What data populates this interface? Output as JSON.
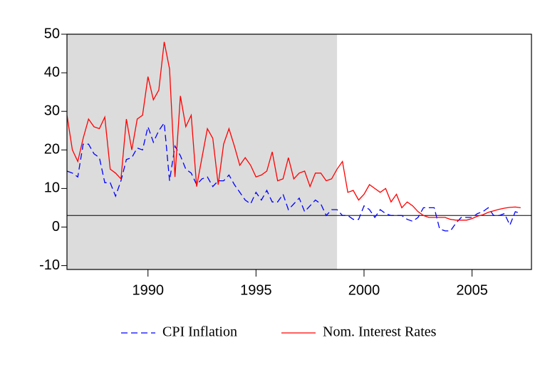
{
  "chart_data": {
    "type": "line",
    "x": [
      1986.25,
      1986.5,
      1986.75,
      1987,
      1987.25,
      1987.5,
      1987.75,
      1988,
      1988.25,
      1988.5,
      1988.75,
      1989,
      1989.25,
      1989.5,
      1989.75,
      1990,
      1990.25,
      1990.5,
      1990.75,
      1991,
      1991.25,
      1991.5,
      1991.75,
      1992,
      1992.25,
      1992.5,
      1992.75,
      1993,
      1993.25,
      1993.5,
      1993.75,
      1994,
      1994.25,
      1994.5,
      1994.75,
      1995,
      1995.25,
      1995.5,
      1995.75,
      1996,
      1996.25,
      1996.5,
      1996.75,
      1997,
      1997.25,
      1997.5,
      1997.75,
      1998,
      1998.25,
      1998.5,
      1998.75,
      1999,
      1999.25,
      1999.5,
      1999.75,
      2000,
      2000.25,
      2000.5,
      2000.75,
      2001,
      2001.25,
      2001.5,
      2001.75,
      2002,
      2002.25,
      2002.5,
      2002.75,
      2003,
      2003.25,
      2003.5,
      2003.75,
      2004,
      2004.25,
      2004.5,
      2004.75,
      2005,
      2005.25,
      2005.5,
      2005.75,
      2006,
      2006.25,
      2006.5,
      2006.75,
      2007,
      2007.25
    ],
    "series": [
      {
        "name": "CPI Inflation",
        "color": "#0000ff",
        "dashed": true,
        "values": [
          14.5,
          14,
          13,
          21.5,
          21.5,
          19,
          18,
          11.5,
          11.5,
          8,
          12,
          17.5,
          18,
          20.5,
          20,
          26,
          22,
          25,
          27,
          12,
          21,
          18.5,
          15,
          14,
          11,
          12.5,
          13,
          10.5,
          12,
          12,
          13.5,
          11,
          9,
          7,
          6,
          9,
          7,
          9.5,
          6.5,
          6.5,
          8.5,
          4.5,
          6,
          7.5,
          4,
          5.5,
          7,
          6,
          3,
          4.5,
          4.5,
          3,
          3,
          2,
          2,
          5.5,
          4.5,
          2.5,
          4.5,
          3.5,
          3,
          3,
          3,
          2,
          1.5,
          2.5,
          5,
          5,
          5,
          -0.5,
          -1,
          -1,
          1,
          2.5,
          2.5,
          2.5,
          3.5,
          4,
          5,
          3,
          3,
          3.5,
          0.5,
          4,
          3.5
        ]
      },
      {
        "name": "Nom. Interest Rates",
        "color": "#ff0000",
        "dashed": false,
        "values": [
          29,
          20,
          17,
          23,
          28,
          26,
          25.5,
          28.5,
          15,
          14,
          12.5,
          28,
          20,
          28,
          29,
          39,
          33,
          35.5,
          48,
          41,
          13,
          34,
          26,
          29,
          10.5,
          18,
          25.5,
          23,
          11,
          21.5,
          25.5,
          21,
          16,
          18,
          16,
          13,
          13.5,
          14.5,
          19.5,
          12,
          12.5,
          18,
          12.5,
          14,
          14.5,
          10.5,
          14,
          14,
          12,
          12.5,
          15,
          17,
          9,
          9.5,
          7,
          8.5,
          11,
          10,
          9,
          10,
          6.5,
          8.5,
          5,
          6.5,
          5.5,
          4,
          3,
          2.5,
          2.5,
          2.5,
          2.5,
          2,
          1.8,
          1.8,
          1.8,
          2.2,
          2.8,
          3.2,
          3.8,
          4.2,
          4.6,
          4.9,
          5.1,
          5.2,
          5.0
        ]
      }
    ],
    "xlim": [
      1986.25,
      2007.75
    ],
    "xticks": [
      1990,
      1995,
      2000,
      2005
    ],
    "ylim": [
      -11,
      50
    ],
    "yticks": [
      -10,
      0,
      10,
      20,
      30,
      40,
      50
    ],
    "shaded_region": [
      1986.25,
      1998.75
    ],
    "shade_color": "#dcdcdc",
    "hline": 3,
    "legend": "bottom"
  }
}
